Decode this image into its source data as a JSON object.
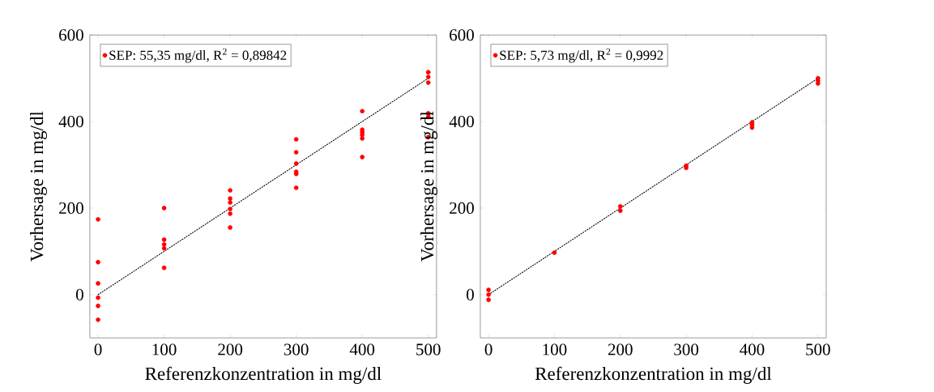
{
  "chart_data": [
    {
      "type": "scatter",
      "xlabel": "Referenzkonzentration in mg/dl",
      "ylabel": "Vorhersage in mg/dl",
      "xlim": [
        -12.5,
        512.5
      ],
      "ylim": [
        -100,
        600
      ],
      "xticks": [
        0,
        100,
        200,
        300,
        400,
        500
      ],
      "yticks": [
        0,
        200,
        400,
        600
      ],
      "legend": "top left",
      "marker": "circle",
      "grid": false,
      "series": [
        {
          "name": "SEP: 55,35 mg/dl, R$^{2}$ = 0,89842",
          "color": "#ff0000",
          "x": [
            0,
            0,
            0,
            0,
            0,
            0,
            100,
            100,
            100,
            100,
            100,
            200,
            200,
            200,
            200,
            200,
            200,
            300,
            300,
            300,
            300,
            300,
            300,
            400,
            400,
            400,
            400,
            400,
            400,
            500,
            500,
            500,
            500,
            500,
            500
          ],
          "values": [
            174,
            75,
            26,
            -7,
            -26,
            -58,
            200,
            127,
            116,
            107,
            62,
            241,
            222,
            213,
            198,
            187,
            155,
            359,
            329,
            303,
            284,
            279,
            247,
            424,
            381,
            375,
            369,
            361,
            318,
            514,
            503,
            490,
            419,
            411,
            364
          ]
        },
        {
          "type": "line",
          "color": "#000000",
          "line_style": "dotted",
          "marker": "none",
          "x": [
            0,
            500
          ],
          "values": [
            0,
            500
          ]
        }
      ]
    },
    {
      "type": "scatter",
      "xlabel": "Referenzkonzentration in mg/dl",
      "ylabel": "Vorhersage in mg/dl",
      "xlim": [
        -12.5,
        512.5
      ],
      "ylim": [
        -100,
        600
      ],
      "xticks": [
        0,
        100,
        200,
        300,
        400,
        500
      ],
      "yticks": [
        0,
        200,
        400,
        600
      ],
      "legend": "top left",
      "marker": "circle",
      "grid": false,
      "series": [
        {
          "name": "SEP: 5,73 mg/dl, R$^{2}$ = 0,9992",
          "color": "#ff0000",
          "x": [
            0,
            0,
            0,
            100,
            200,
            200,
            300,
            300,
            400,
            400,
            400,
            500,
            500,
            500
          ],
          "values": [
            11,
            0,
            -12,
            97,
            204,
            194,
            298,
            293,
            398,
            392,
            386,
            500,
            494,
            488
          ]
        },
        {
          "type": "line",
          "color": "#000000",
          "line_style": "dotted",
          "marker": "none",
          "x": [
            0,
            500
          ],
          "values": [
            0,
            500
          ]
        }
      ]
    }
  ]
}
